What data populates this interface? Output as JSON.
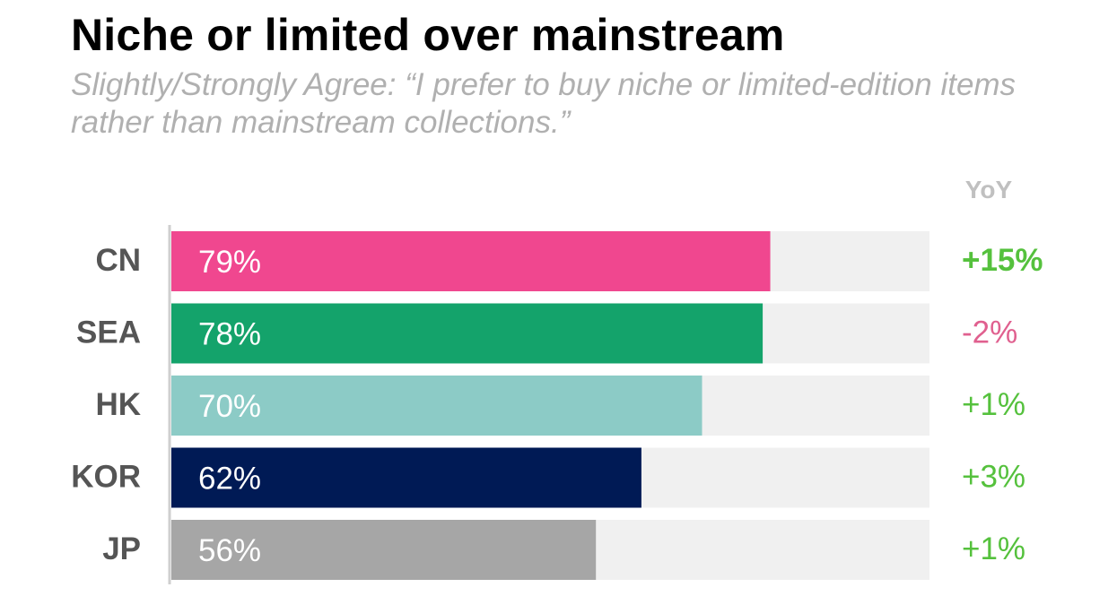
{
  "title": "Niche or limited over mainstream",
  "subtitle": "Slightly/Strongly Agree: “I prefer to buy niche or limited-edition items rather than mainstream collections.”",
  "yoy_header": "YoY",
  "colors": {
    "track": "#f0f0f0",
    "axis": "#cfcfcf",
    "positive": "#55c13d",
    "negative": "#e0608f"
  },
  "chart_data": {
    "type": "bar",
    "orientation": "horizontal",
    "xlim": [
      0,
      100
    ],
    "categories": [
      "CN",
      "SEA",
      "HK",
      "KOR",
      "JP"
    ],
    "values": [
      79,
      78,
      70,
      62,
      56
    ],
    "value_labels": [
      "79%",
      "78%",
      "70%",
      "62%",
      "56%"
    ],
    "bar_colors": [
      "#f0478f",
      "#14a36b",
      "#8ccbc6",
      "#001a55",
      "#a6a6a6"
    ],
    "yoy": [
      "+15%",
      "-2%",
      "+1%",
      "+3%",
      "+1%"
    ],
    "yoy_bold": [
      true,
      false,
      false,
      false,
      false
    ]
  }
}
